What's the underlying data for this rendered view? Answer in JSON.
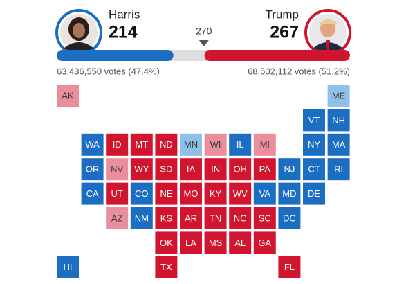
{
  "candidates": [
    {
      "name": "Harris",
      "electoral_votes": 214,
      "popular_vote": "63,436,550 votes (47.4%)",
      "color": "#1b6ec2"
    },
    {
      "name": "Trump",
      "electoral_votes": 267,
      "popular_vote": "68,502,112 votes (51.2%)",
      "color": "#d2152f"
    }
  ],
  "bar": {
    "threshold": 270,
    "xlim": [
      0,
      538
    ]
  },
  "states": [
    {
      "label": "AK",
      "color": "#eb8e9c"
    },
    {
      "label": "ME",
      "color": "#8fc0e8"
    },
    {
      "label": "VT",
      "color": "#1b6ec2"
    },
    {
      "label": "NH",
      "color": "#1b6ec2"
    },
    {
      "label": "WA",
      "color": "#1b6ec2"
    },
    {
      "label": "ID",
      "color": "#d2152f"
    },
    {
      "label": "MT",
      "color": "#d2152f"
    },
    {
      "label": "ND",
      "color": "#d2152f"
    },
    {
      "label": "MN",
      "color": "#8fc0e8"
    },
    {
      "label": "WI",
      "color": "#eb8e9c"
    },
    {
      "label": "IL",
      "color": "#1b6ec2"
    },
    {
      "label": "MI",
      "color": "#eb8e9c"
    },
    {
      "label": "NY",
      "color": "#1b6ec2"
    },
    {
      "label": "MA",
      "color": "#1b6ec2"
    },
    {
      "label": "OR",
      "color": "#1b6ec2"
    },
    {
      "label": "NV",
      "color": "#eb8e9c"
    },
    {
      "label": "WY",
      "color": "#d2152f"
    },
    {
      "label": "SD",
      "color": "#d2152f"
    },
    {
      "label": "IA",
      "color": "#d2152f"
    },
    {
      "label": "IN",
      "color": "#d2152f"
    },
    {
      "label": "OH",
      "color": "#d2152f"
    },
    {
      "label": "PA",
      "color": "#d2152f"
    },
    {
      "label": "NJ",
      "color": "#1b6ec2"
    },
    {
      "label": "CT",
      "color": "#1b6ec2"
    },
    {
      "label": "RI",
      "color": "#1b6ec2"
    },
    {
      "label": "CA",
      "color": "#1b6ec2"
    },
    {
      "label": "UT",
      "color": "#d2152f"
    },
    {
      "label": "CO",
      "color": "#1b6ec2"
    },
    {
      "label": "NE",
      "color": "#d2152f"
    },
    {
      "label": "MO",
      "color": "#d2152f"
    },
    {
      "label": "KY",
      "color": "#d2152f"
    },
    {
      "label": "WV",
      "color": "#d2152f"
    },
    {
      "label": "VA",
      "color": "#1b6ec2"
    },
    {
      "label": "MD",
      "color": "#1b6ec2"
    },
    {
      "label": "DE",
      "color": "#1b6ec2"
    },
    {
      "label": "AZ",
      "color": "#eb8e9c"
    },
    {
      "label": "NM",
      "color": "#1b6ec2"
    },
    {
      "label": "KS",
      "color": "#d2152f"
    },
    {
      "label": "AR",
      "color": "#d2152f"
    },
    {
      "label": "TN",
      "color": "#d2152f"
    },
    {
      "label": "NC",
      "color": "#d2152f"
    },
    {
      "label": "SC",
      "color": "#d2152f"
    },
    {
      "label": "DC",
      "color": "#1b6ec2"
    },
    {
      "label": "OK",
      "color": "#d2152f"
    },
    {
      "label": "LA",
      "color": "#d2152f"
    },
    {
      "label": "MS",
      "color": "#d2152f"
    },
    {
      "label": "AL",
      "color": "#d2152f"
    },
    {
      "label": "GA",
      "color": "#d2152f"
    },
    {
      "label": "HI",
      "color": "#1b6ec2"
    },
    {
      "label": "TX",
      "color": "#d2152f"
    },
    {
      "label": "FL",
      "color": "#d2152f"
    }
  ]
}
